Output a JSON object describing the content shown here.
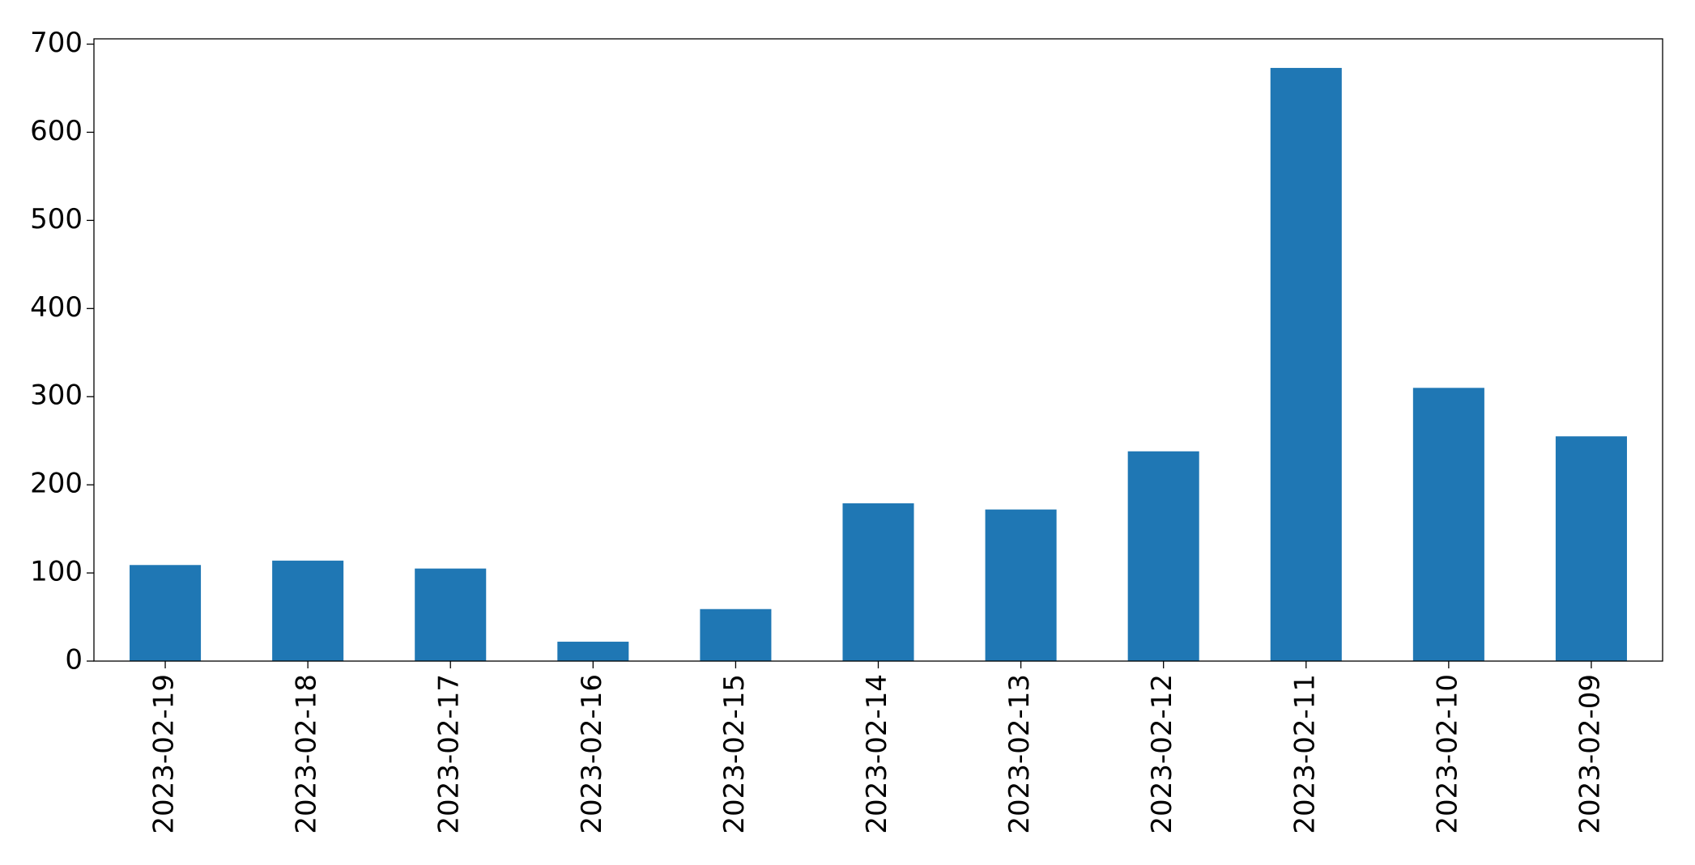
{
  "chart_data": {
    "type": "bar",
    "categories": [
      "2023-02-19",
      "2023-02-18",
      "2023-02-17",
      "2023-02-16",
      "2023-02-15",
      "2023-02-14",
      "2023-02-13",
      "2023-02-12",
      "2023-02-11",
      "2023-02-10",
      "2023-02-09"
    ],
    "values": [
      109,
      114,
      105,
      22,
      59,
      179,
      172,
      238,
      673,
      310,
      255
    ],
    "color": "#1f77b4",
    "ylim": [
      0,
      706
    ],
    "yticks": [
      0,
      100,
      200,
      300,
      400,
      500,
      600,
      700
    ],
    "grid": false
  }
}
